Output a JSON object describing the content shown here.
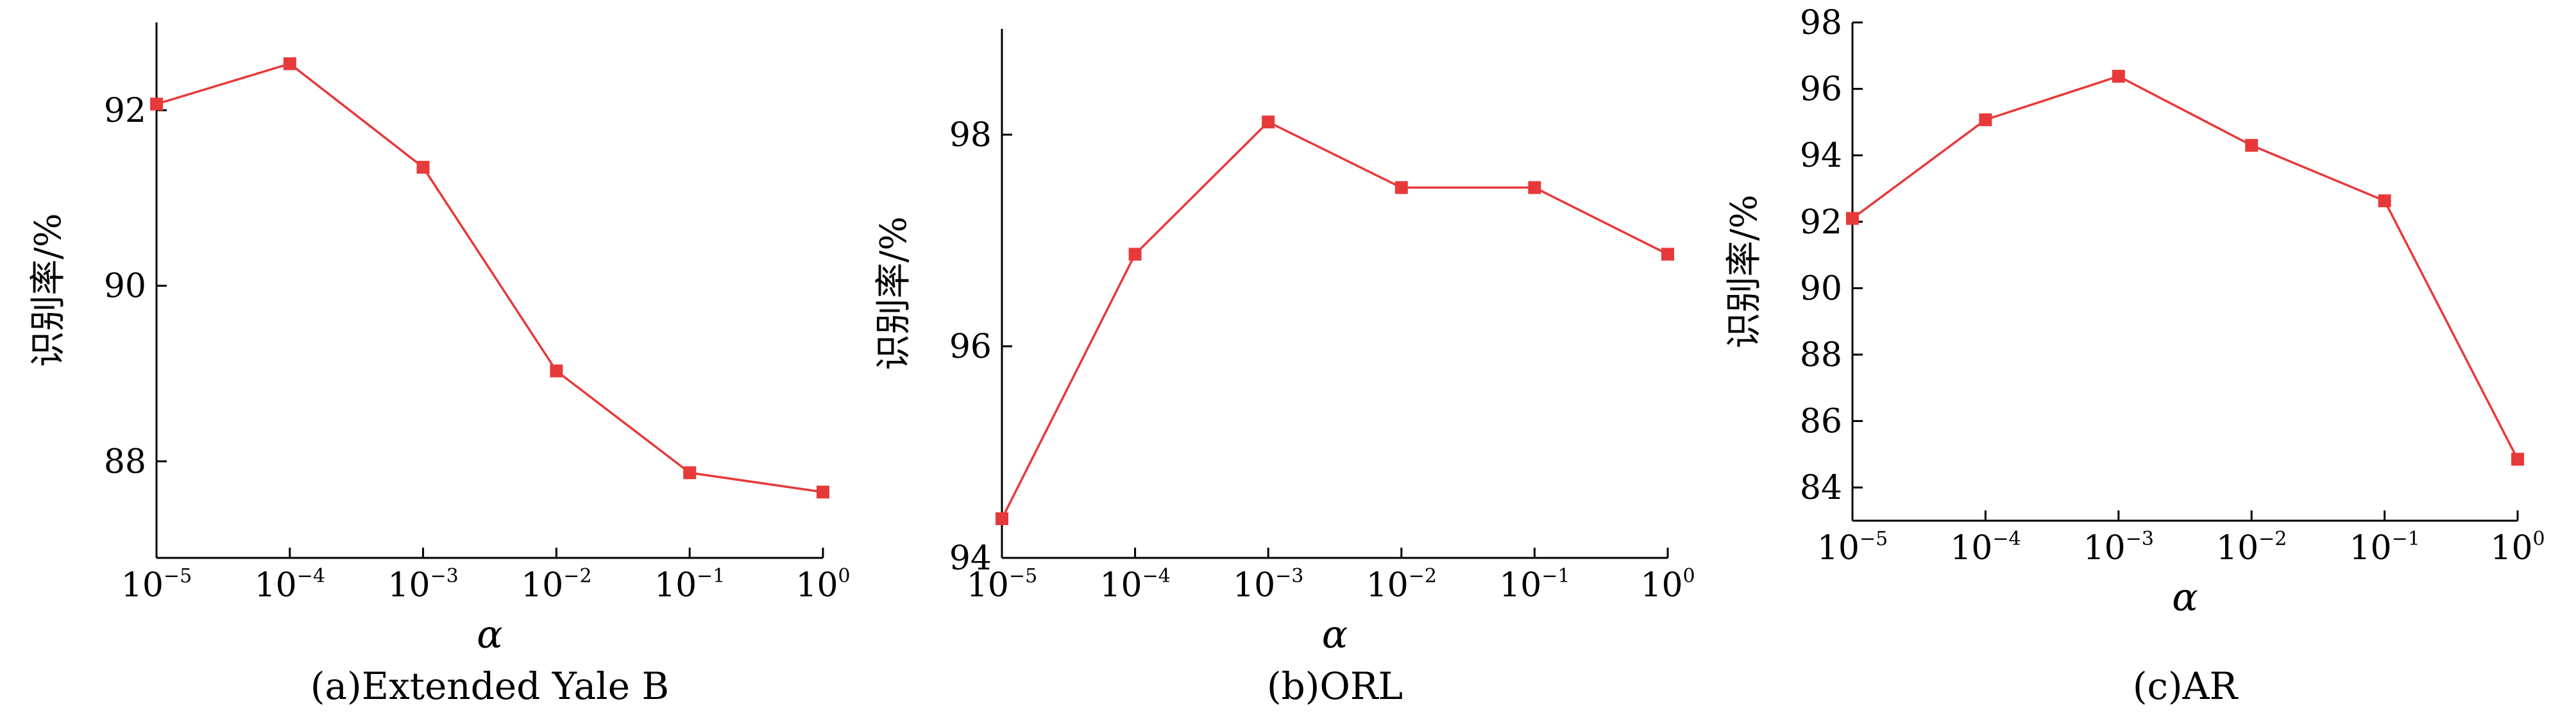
{
  "chart_data": [
    {
      "type": "line",
      "caption": "(a)Extended Yale B",
      "xlabel": "α",
      "ylabel": "识别率/%",
      "x_ticks": [
        {
          "base": "10",
          "exp": "−5"
        },
        {
          "base": "10",
          "exp": "−4"
        },
        {
          "base": "10",
          "exp": "−3"
        },
        {
          "base": "10",
          "exp": "−2"
        },
        {
          "base": "10",
          "exp": "−1"
        },
        {
          "base": "10",
          "exp": "0"
        }
      ],
      "x": [
        1e-05,
        0.0001,
        0.001,
        0.01,
        0.1,
        1
      ],
      "y_ticks": [
        88,
        90,
        92
      ],
      "ylim": [
        86.9,
        93.0
      ],
      "series": [
        {
          "color": "#e8393a",
          "values": [
            92.07,
            92.53,
            91.35,
            89.03,
            87.87,
            87.65
          ]
        }
      ]
    },
    {
      "type": "line",
      "caption": "(b)ORL",
      "xlabel": "α",
      "ylabel": "识别率/%",
      "x_ticks": [
        {
          "base": "10",
          "exp": "−5"
        },
        {
          "base": "10",
          "exp": "−4"
        },
        {
          "base": "10",
          "exp": "−3"
        },
        {
          "base": "10",
          "exp": "−2"
        },
        {
          "base": "10",
          "exp": "−1"
        },
        {
          "base": "10",
          "exp": "0"
        }
      ],
      "x": [
        1e-05,
        0.0001,
        0.001,
        0.01,
        0.1,
        1
      ],
      "y_ticks": [
        94,
        96,
        98
      ],
      "ylim": [
        94.0,
        99.0
      ],
      "series": [
        {
          "color": "#e8393a",
          "values": [
            94.37,
            96.87,
            98.12,
            97.5,
            97.5,
            96.87
          ]
        }
      ]
    },
    {
      "type": "line",
      "caption": "(c)AR",
      "xlabel": "α",
      "ylabel": "识别率/%",
      "x_ticks": [
        {
          "base": "10",
          "exp": "−5"
        },
        {
          "base": "10",
          "exp": "−4"
        },
        {
          "base": "10",
          "exp": "−3"
        },
        {
          "base": "10",
          "exp": "−2"
        },
        {
          "base": "10",
          "exp": "−1"
        },
        {
          "base": "10",
          "exp": "0"
        }
      ],
      "x": [
        1e-05,
        0.0001,
        0.001,
        0.01,
        0.1,
        1
      ],
      "y_ticks": [
        84,
        86,
        88,
        90,
        92,
        94,
        96,
        98
      ],
      "ylim": [
        83.0,
        98.0
      ],
      "series": [
        {
          "color": "#e8393a",
          "values": [
            92.1,
            95.07,
            96.38,
            94.3,
            92.63,
            84.85
          ]
        }
      ]
    }
  ]
}
